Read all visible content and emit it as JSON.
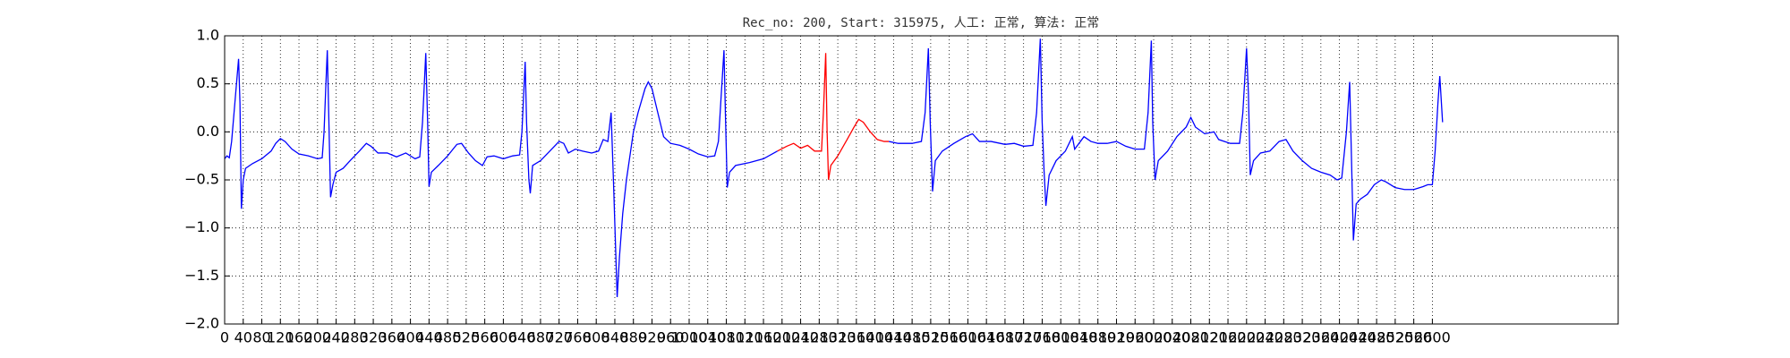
{
  "chart_data": {
    "type": "line",
    "title": "Rec_no: 200, Start: 315975, 人工: 正常, 算法: 正常",
    "xlim": [
      0,
      3000
    ],
    "xticks": [
      0,
      40,
      80,
      120,
      160,
      200,
      240,
      280,
      320,
      360,
      400,
      440,
      480,
      520,
      560,
      600,
      640,
      680,
      720,
      760,
      800,
      840,
      880,
      920,
      960,
      1000,
      1040,
      1080,
      1120,
      1160,
      1200,
      1240,
      1280,
      1320,
      1360,
      1400,
      1440,
      1480,
      1520,
      1560,
      1600,
      1640,
      1680,
      1720,
      1760,
      1800,
      1840,
      1880,
      1920,
      1960,
      2000,
      2040,
      2080,
      2120,
      2160,
      2200,
      2240,
      2280,
      2320,
      2360,
      2400,
      2440,
      2480,
      2520,
      2560,
      2600
    ],
    "ylim": [
      -2,
      1
    ],
    "yticks": [
      {
        "value": -2,
        "label": "−2.0"
      },
      {
        "value": -1.5,
        "label": "−1.5"
      },
      {
        "value": -1,
        "label": "−1.0"
      },
      {
        "value": -0.5,
        "label": "−0.5"
      },
      {
        "value": 0,
        "label": "0.0"
      },
      {
        "value": 0.5,
        "label": "0.5"
      },
      {
        "value": 1,
        "label": "1.0"
      }
    ],
    "grid": true,
    "lines": [
      {
        "color": "#0000ff",
        "x": [
          0,
          5,
          10,
          15,
          22,
          30,
          33,
          36,
          40,
          45,
          60,
          80,
          100,
          110,
          120,
          130,
          145,
          160,
          180,
          200,
          210,
          214,
          218,
          221,
          224,
          228,
          233,
          240,
          255,
          270,
          290,
          305,
          315,
          330,
          350,
          370,
          390,
          410,
          420,
          426,
          433,
          437,
          440,
          445,
          460,
          480,
          500,
          510,
          525,
          540,
          555,
          565,
          580,
          600,
          620,
          635,
          640,
          647,
          650,
          655,
          658,
          663,
          680,
          700,
          720,
          730,
          740,
          755,
          770,
          790,
          805,
          815,
          825,
          832,
          837,
          845,
          850,
          857,
          865,
          880,
          890,
          905,
          912,
          920,
          930,
          945,
          960,
          980,
          1000,
          1020,
          1040,
          1055,
          1063,
          1068,
          1075,
          1078,
          1082,
          1087,
          1100,
          1130,
          1160,
          1190
        ],
        "values": [
          -0.28,
          -0.25,
          -0.27,
          -0.1,
          0.3,
          0.76,
          0.3,
          -0.8,
          -0.5,
          -0.38,
          -0.33,
          -0.28,
          -0.2,
          -0.12,
          -0.07,
          -0.1,
          -0.18,
          -0.23,
          -0.25,
          -0.28,
          -0.27,
          0.0,
          0.5,
          0.85,
          0.2,
          -0.68,
          -0.55,
          -0.42,
          -0.38,
          -0.3,
          -0.2,
          -0.12,
          -0.15,
          -0.22,
          -0.22,
          -0.26,
          -0.22,
          -0.28,
          -0.26,
          0.1,
          0.82,
          0.1,
          -0.57,
          -0.42,
          -0.35,
          -0.25,
          -0.13,
          -0.12,
          -0.22,
          -0.3,
          -0.35,
          -0.26,
          -0.25,
          -0.28,
          -0.25,
          -0.24,
          0.0,
          0.73,
          0.1,
          -0.5,
          -0.64,
          -0.35,
          -0.3,
          -0.2,
          -0.1,
          -0.12,
          -0.22,
          -0.18,
          -0.2,
          -0.22,
          -0.2,
          -0.08,
          -0.1,
          0.2,
          -0.5,
          -1.72,
          -1.3,
          -0.85,
          -0.5,
          0.0,
          0.2,
          0.45,
          0.52,
          0.45,
          0.25,
          -0.05,
          -0.12,
          -0.14,
          -0.18,
          -0.23,
          -0.26,
          -0.25,
          -0.1,
          0.3,
          0.85,
          0.2,
          -0.58,
          -0.42,
          -0.35,
          -0.32,
          -0.28,
          -0.2
        ]
      },
      {
        "color": "#ff0000",
        "x": [
          1190,
          1210,
          1225,
          1240,
          1255,
          1270,
          1285,
          1289,
          1294,
          1297,
          1300,
          1305,
          1320,
          1340,
          1355,
          1365,
          1375,
          1390,
          1405,
          1420,
          1430
        ],
        "values": [
          -0.2,
          -0.15,
          -0.12,
          -0.17,
          -0.14,
          -0.2,
          -0.2,
          0.2,
          0.82,
          0.0,
          -0.5,
          -0.35,
          -0.25,
          -0.08,
          0.05,
          0.13,
          0.1,
          0.0,
          -0.08,
          -0.1,
          -0.1
        ]
      },
      {
        "color": "#0000ff",
        "x": [
          1430,
          1450,
          1480,
          1500,
          1508,
          1515,
          1519,
          1524,
          1530,
          1545,
          1570,
          1595,
          1610,
          1625,
          1650,
          1680,
          1700,
          1720,
          1740,
          1748,
          1756,
          1760,
          1764,
          1768,
          1775,
          1790,
          1810,
          1825,
          1830,
          1850,
          1865,
          1880,
          1900,
          1920,
          1940,
          1960,
          1980,
          1988,
          1995,
          1998,
          2003,
          2010,
          2030,
          2050,
          2070,
          2080,
          2090,
          2110,
          2130,
          2140,
          2165,
          2185,
          2192,
          2200,
          2204,
          2208,
          2215,
          2230,
          2250,
          2270,
          2285,
          2300,
          2320,
          2340,
          2360,
          2380,
          2395,
          2405,
          2415,
          2422,
          2426,
          2430,
          2436,
          2445,
          2460,
          2475,
          2490,
          2500,
          2520,
          2540,
          2560,
          2580,
          2590,
          2600,
          2606,
          2612,
          2616,
          2622
        ],
        "values": [
          -0.1,
          -0.12,
          -0.12,
          -0.1,
          0.2,
          0.87,
          0.1,
          -0.62,
          -0.3,
          -0.2,
          -0.12,
          -0.05,
          -0.02,
          -0.1,
          -0.1,
          -0.13,
          -0.12,
          -0.15,
          -0.14,
          0.2,
          0.97,
          0.1,
          -0.4,
          -0.77,
          -0.45,
          -0.3,
          -0.2,
          -0.05,
          -0.18,
          -0.05,
          -0.1,
          -0.12,
          -0.12,
          -0.1,
          -0.15,
          -0.18,
          -0.18,
          0.2,
          0.95,
          0.1,
          -0.5,
          -0.3,
          -0.2,
          -0.05,
          0.05,
          0.15,
          0.05,
          -0.02,
          0.0,
          -0.08,
          -0.12,
          -0.12,
          0.2,
          0.87,
          0.4,
          -0.45,
          -0.3,
          -0.22,
          -0.2,
          -0.1,
          -0.08,
          -0.2,
          -0.3,
          -0.38,
          -0.42,
          -0.45,
          -0.5,
          -0.48,
          0.0,
          0.52,
          -0.3,
          -1.13,
          -0.75,
          -0.7,
          -0.65,
          -0.55,
          -0.5,
          -0.52,
          -0.58,
          -0.6,
          -0.6,
          -0.57,
          -0.55,
          -0.55,
          -0.2,
          0.3,
          0.58,
          0.1
        ]
      }
    ]
  }
}
